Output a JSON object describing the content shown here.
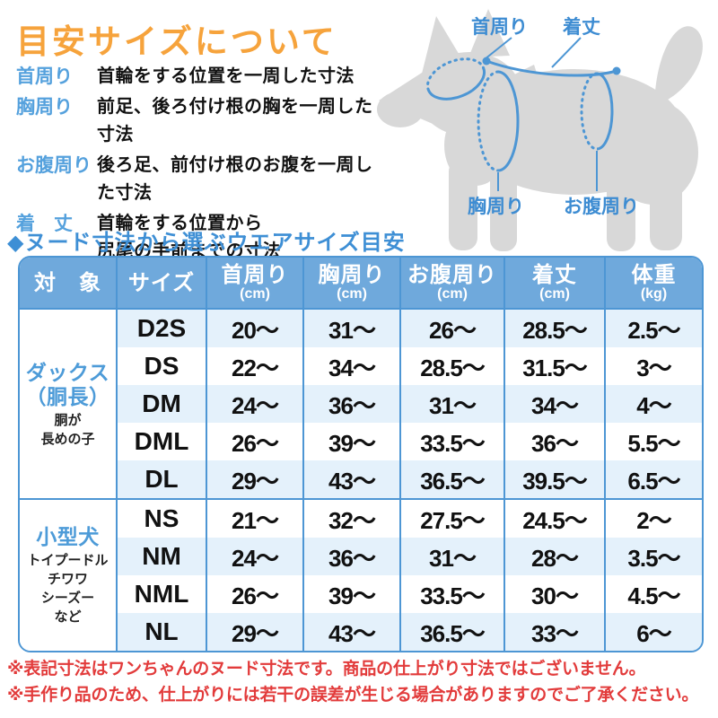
{
  "title": "目安サイズについて",
  "definitions": [
    {
      "term": "首周り",
      "desc": "首輪をする位置を一周した寸法"
    },
    {
      "term": "胸周り",
      "desc": "前足、後ろ付け根の胸を一周した寸法"
    },
    {
      "term": "お腹周り",
      "desc": "後ろ足、前付け根のお腹を一周した寸法"
    },
    {
      "term": "着　丈",
      "desc": "首輪をする位置から\n尻尾の手前までの寸法"
    }
  ],
  "diagram": {
    "neck_label": "首周り",
    "length_label": "着丈",
    "chest_label": "胸周り",
    "belly_label": "お腹周り"
  },
  "section_title": "◆ヌード寸法から選ぶウエアサイズ目安",
  "table": {
    "headers": [
      {
        "label": "対　象",
        "unit": ""
      },
      {
        "label": "サイズ",
        "unit": ""
      },
      {
        "label": "首周り",
        "unit": "(cm)"
      },
      {
        "label": "胸周り",
        "unit": "(cm)"
      },
      {
        "label": "お腹周り",
        "unit": "(cm)"
      },
      {
        "label": "着丈",
        "unit": "(cm)"
      },
      {
        "label": "体重",
        "unit": "(kg)"
      }
    ],
    "groups": [
      {
        "name_lines": [
          "ダックス",
          "（胴長）"
        ],
        "sub_lines": [
          "胴が",
          "長めの子"
        ],
        "rows": [
          {
            "size": "D2S",
            "values": [
              "20〜",
              "31〜",
              "26〜",
              "28.5〜",
              "2.5〜"
            ]
          },
          {
            "size": "DS",
            "values": [
              "22〜",
              "34〜",
              "28.5〜",
              "31.5〜",
              "3〜"
            ]
          },
          {
            "size": "DM",
            "values": [
              "24〜",
              "36〜",
              "31〜",
              "34〜",
              "4〜"
            ]
          },
          {
            "size": "DML",
            "values": [
              "26〜",
              "39〜",
              "33.5〜",
              "36〜",
              "5.5〜"
            ]
          },
          {
            "size": "DL",
            "values": [
              "29〜",
              "43〜",
              "36.5〜",
              "39.5〜",
              "6.5〜"
            ]
          }
        ]
      },
      {
        "name_lines": [
          "小型犬"
        ],
        "sub_lines": [
          "トイプードル",
          "チワワ",
          "シーズー",
          "など"
        ],
        "rows": [
          {
            "size": "NS",
            "values": [
              "21〜",
              "32〜",
              "27.5〜",
              "24.5〜",
              "2〜"
            ]
          },
          {
            "size": "NM",
            "values": [
              "24〜",
              "36〜",
              "31〜",
              "28〜",
              "3.5〜"
            ]
          },
          {
            "size": "NML",
            "values": [
              "26〜",
              "39〜",
              "33.5〜",
              "30〜",
              "4.5〜"
            ]
          },
          {
            "size": "NL",
            "values": [
              "29〜",
              "43〜",
              "36.5〜",
              "33〜",
              "6〜"
            ]
          }
        ]
      }
    ]
  },
  "notes": [
    "※表記寸法はワンちゃんのヌード寸法です。商品の仕上がり寸法ではございません。",
    "※手作り品のため、仕上がりには若干の誤差が生じる場合がありますのでご了承ください。"
  ],
  "colors": {
    "accent_orange": "#F6A33C",
    "accent_blue": "#3E8FD5",
    "table_border": "#4D96D4",
    "header_bg": "#6FA9DC",
    "stripe_blue": "#E4F1FB",
    "group_label_blue": "#4D9BD8",
    "note_red": "#E23B3B",
    "dog_gray": "#D8D8D8"
  }
}
